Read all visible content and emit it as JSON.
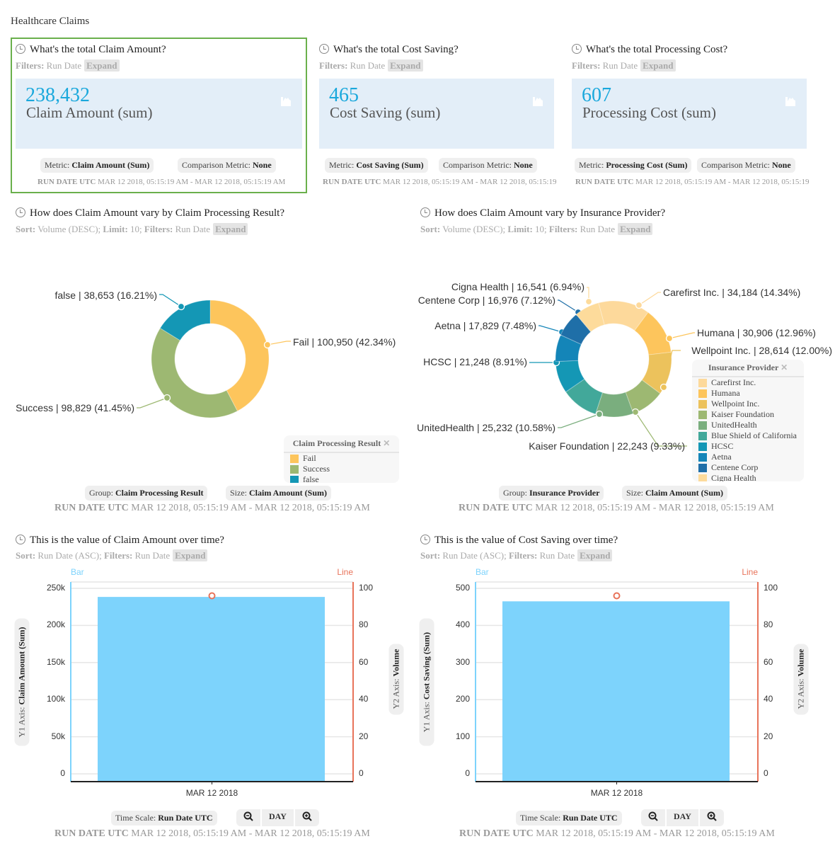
{
  "page": {
    "title": "Healthcare Claims"
  },
  "kpis": [
    {
      "question": "What's the total Claim Amount?",
      "filters_label": "Filters:",
      "filters": "Run Date",
      "expand": "Expand",
      "value": "238,432",
      "label": "Claim Amount (sum)",
      "metric_label": "Metric:",
      "metric": "Claim Amount (Sum)",
      "comparison_label": "Comparison Metric:",
      "comparison": "None",
      "run_label": "RUN DATE UTC",
      "run": "MAR 12 2018, 05:15:19 AM - MAR 12 2018, 05:15:19 AM",
      "selected": true
    },
    {
      "question": "What's the total Cost Saving?",
      "filters_label": "Filters:",
      "filters": "Run Date",
      "expand": "Expand",
      "value": "465",
      "label": "Cost Saving (sum)",
      "metric_label": "Metric:",
      "metric": "Cost Saving (Sum)",
      "comparison_label": "Comparison Metric:",
      "comparison": "None",
      "run_label": "RUN DATE UTC",
      "run": "MAR 12 2018, 05:15:19 AM - MAR 12 2018, 05:15:19 AM"
    },
    {
      "question": "What's the total Processing Cost?",
      "filters_label": "Filters:",
      "filters": "Run Date",
      "expand": "Expand",
      "value": "607",
      "label": "Processing Cost (sum)",
      "metric_label": "Metric:",
      "metric": "Processing Cost (Sum)",
      "comparison_label": "Comparison Metric:",
      "comparison": "None",
      "run_label": "RUN DATE UTC",
      "run": "MAR 12 2018, 05:15:19 AM - MAR 12 2018, 05:15:19 AM"
    }
  ],
  "donuts": [
    {
      "question": "How does Claim Amount vary by Claim Processing Result?",
      "sort": "Sort:",
      "sort_val": "Volume (DESC);",
      "limit": "Limit:",
      "limit_val": "10;",
      "filters_label": "Filters:",
      "filters": "Run Date",
      "expand": "Expand",
      "legend_title": "Claim Processing Result",
      "group_label": "Group:",
      "group": "Claim Processing Result",
      "size_label": "Size:",
      "size": "Claim Amount (Sum)",
      "run_label": "RUN DATE UTC",
      "run": "MAR 12 2018, 05:15:19 AM - MAR 12 2018, 05:15:19 AM"
    },
    {
      "question": "How does Claim Amount vary by Insurance Provider?",
      "sort": "Sort:",
      "sort_val": "Volume (DESC);",
      "limit": "Limit:",
      "limit_val": "10;",
      "filters_label": "Filters:",
      "filters": "Run Date",
      "expand": "Expand",
      "legend_title": "Insurance Provider",
      "group_label": "Group:",
      "group": "Insurance Provider",
      "size_label": "Size:",
      "size": "Claim Amount (Sum)",
      "run_label": "RUN DATE UTC",
      "run": "MAR 12 2018, 05:15:19 AM - MAR 12 2018, 05:15:19 AM"
    }
  ],
  "timecharts": [
    {
      "question": "This is the value of Claim Amount over time?",
      "sort": "Sort:",
      "sort_val": "Run Date (ASC);",
      "filters_label": "Filters:",
      "filters": "Run Date",
      "expand": "Expand",
      "y1_label": "Y1 Axis:",
      "y1": "Claim Amount (Sum)",
      "y2_label": "Y2 Axis:",
      "y2": "Volume",
      "timescale_label": "Time Scale:",
      "timescale": "Run Date UTC",
      "granularity": "DAY",
      "run_label": "RUN DATE UTC",
      "run": "MAR 12 2018, 05:15:19 AM - MAR 12 2018, 05:15:19 AM"
    },
    {
      "question": "This is the value of Cost Saving over time?",
      "sort": "Sort:",
      "sort_val": "Run Date (ASC);",
      "filters_label": "Filters:",
      "filters": "Run Date",
      "expand": "Expand",
      "y1_label": "Y1 Axis:",
      "y1": "Cost Saving (Sum)",
      "y2_label": "Y2 Axis:",
      "y2": "Volume",
      "timescale_label": "Time Scale:",
      "timescale": "Run Date UTC",
      "granularity": "DAY",
      "run_label": "RUN DATE UTC",
      "run": "MAR 12 2018, 05:15:19 AM - MAR 12 2018, 05:15:19 AM"
    }
  ],
  "chart_data": [
    {
      "type": "pie",
      "donut": true,
      "categories": [
        "Fail",
        "Success",
        "false"
      ],
      "values": [
        100950,
        98829,
        38653
      ],
      "labels": [
        "Fail | 100,950 (42.34%)",
        "Success | 98,829 (41.45%)",
        "false | 38,653 (16.21%)"
      ],
      "colors": [
        "#fdc55c",
        "#9db872",
        "#1497b5"
      ],
      "legend": "bottom-right"
    },
    {
      "type": "pie",
      "donut": true,
      "categories": [
        "Carefirst Inc.",
        "Humana",
        "Wellpoint Inc.",
        "Kaiser Foundation",
        "UnitedHealth",
        "Blue Shield of California",
        "HCSC",
        "Aetna",
        "Centene Corp",
        "Cigna Health"
      ],
      "values": [
        34184,
        30906,
        28614,
        22243,
        25232,
        24659,
        21248,
        17829,
        16976,
        16541
      ],
      "labels": [
        "Carefirst Inc. | 34,184 (14.34%)",
        "Humana | 30,906 (12.96%)",
        "Wellpoint Inc. | 28,614 (12.00%)",
        "Kaiser Foundation | 22,243 (9.33%)",
        "UnitedHealth | 25,232 (10.58%)",
        "",
        "HCSC | 21,248 (8.91%)",
        "Aetna | 17,829 (7.48%)",
        "Centene Corp | 16,976 (7.12%)",
        "Cigna Health | 16,541 (6.94%)"
      ],
      "colors": [
        "#fdd99b",
        "#fdc55c",
        "#ecc25c",
        "#9db872",
        "#7aae7e",
        "#42a89a",
        "#1497b5",
        "#1485b8",
        "#1f6fa8",
        "#fddb9b"
      ],
      "legend": "right"
    },
    {
      "type": "bar",
      "categories": [
        "MAR 12 2018"
      ],
      "series": [
        {
          "name": "Bar",
          "values": [
            238432
          ],
          "axis": "y1"
        },
        {
          "name": "Line",
          "values": [
            96
          ],
          "axis": "y2"
        }
      ],
      "y1_ticks": [
        "0",
        "50k",
        "100k",
        "150k",
        "200k",
        "250k"
      ],
      "y1lim": [
        0,
        250000
      ],
      "y2_ticks": [
        "0",
        "20",
        "40",
        "60",
        "80",
        "100"
      ],
      "y2lim": [
        0,
        100
      ],
      "bar_color": "#7dd3fc",
      "line_color": "#e8735a"
    },
    {
      "type": "bar",
      "categories": [
        "MAR 12 2018"
      ],
      "series": [
        {
          "name": "Bar",
          "values": [
            465
          ],
          "axis": "y1"
        },
        {
          "name": "Line",
          "values": [
            96
          ],
          "axis": "y2"
        }
      ],
      "y1_ticks": [
        "0",
        "100",
        "200",
        "300",
        "400",
        "500"
      ],
      "y1lim": [
        0,
        500
      ],
      "y2_ticks": [
        "0",
        "20",
        "40",
        "60",
        "80",
        "100"
      ],
      "y2lim": [
        0,
        100
      ],
      "bar_color": "#7dd3fc",
      "line_color": "#e8735a"
    }
  ]
}
